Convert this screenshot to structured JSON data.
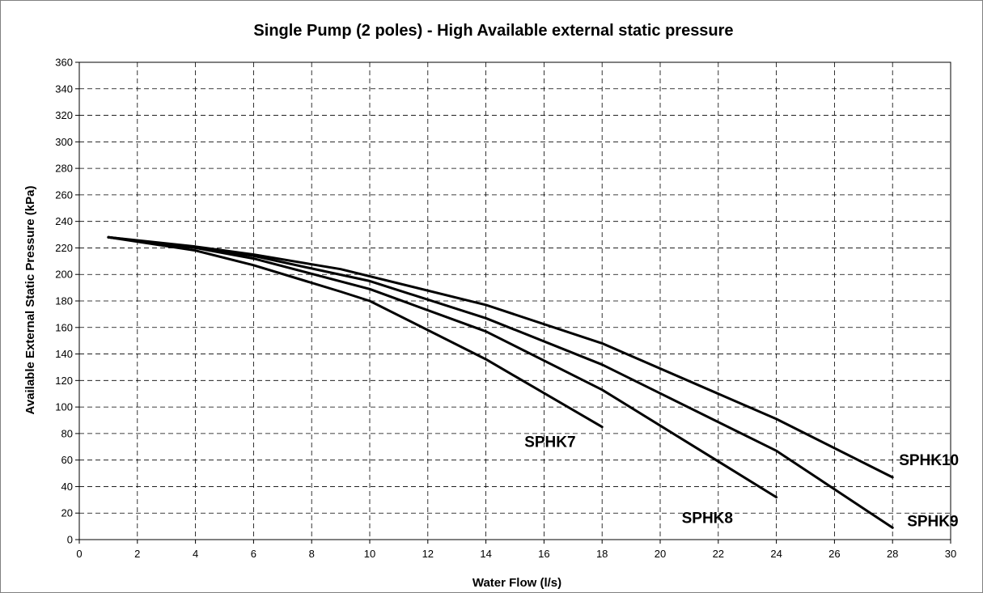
{
  "chart_data": {
    "type": "line",
    "title": "Single Pump (2 poles) - High Available external static pressure",
    "xlabel": "Water Flow (l/s)",
    "ylabel": "Available External Static Pressure (kPa)",
    "xlim": [
      0,
      30
    ],
    "ylim": [
      0,
      360
    ],
    "x_ticks": [
      0,
      2,
      4,
      6,
      8,
      10,
      12,
      14,
      16,
      18,
      20,
      22,
      24,
      26,
      28,
      30
    ],
    "y_ticks": [
      0,
      20,
      40,
      60,
      80,
      100,
      120,
      140,
      160,
      180,
      200,
      220,
      240,
      260,
      280,
      300,
      320,
      340,
      360
    ],
    "grid": true,
    "legend": "inline labels",
    "series": [
      {
        "name": "SPHK7",
        "x": [
          1,
          4,
          6,
          9,
          10,
          14,
          18
        ],
        "y": [
          228,
          218,
          207,
          187,
          180,
          136,
          85
        ]
      },
      {
        "name": "SPHK8",
        "x": [
          1,
          4,
          6,
          10,
          14,
          18,
          24
        ],
        "y": [
          228,
          220,
          212,
          189,
          157,
          113,
          32
        ]
      },
      {
        "name": "SPHK9",
        "x": [
          1,
          4,
          6,
          10,
          14,
          18,
          24,
          28
        ],
        "y": [
          228,
          220,
          214,
          195,
          167,
          132,
          67,
          9
        ]
      },
      {
        "name": "SPHK10",
        "x": [
          1,
          4,
          6,
          9,
          14,
          18,
          24,
          28
        ],
        "y": [
          228,
          221,
          215,
          204,
          177,
          148,
          91,
          47
        ]
      }
    ]
  }
}
